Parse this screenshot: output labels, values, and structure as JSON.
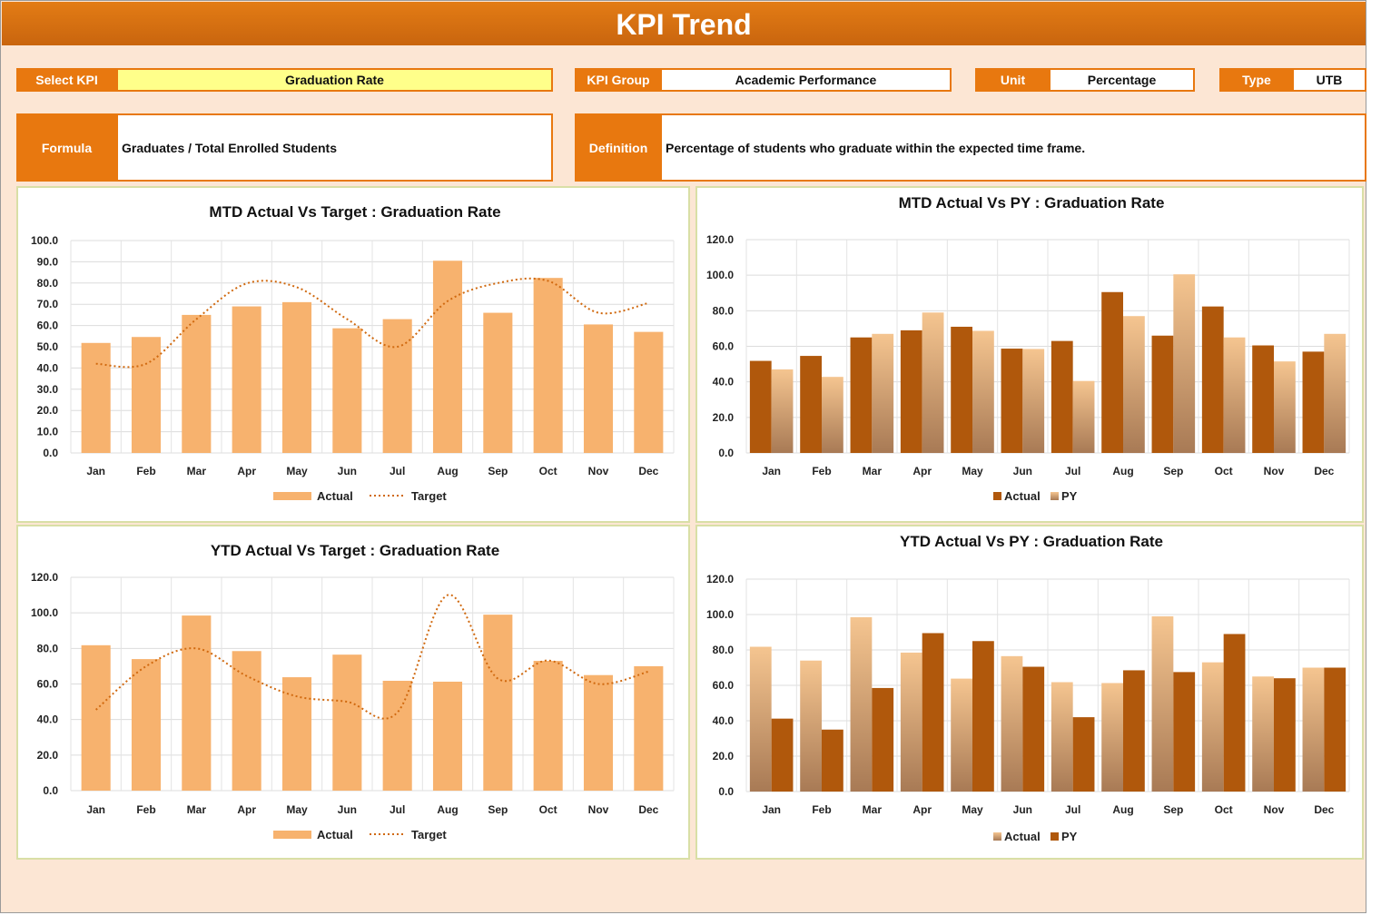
{
  "header": {
    "title": "KPI Trend"
  },
  "info": {
    "select_kpi_label": "Select KPI",
    "select_kpi_value": "Graduation Rate",
    "kpi_group_label": "KPI Group",
    "kpi_group_value": "Academic Performance",
    "unit_label": "Unit",
    "unit_value": "Percentage",
    "type_label": "Type",
    "type_value": "UTB",
    "formula_label": "Formula",
    "formula_value": "Graduates / Total Enrolled Students",
    "definition_label": "Definition",
    "definition_value": "Percentage of students who graduate within the expected time frame."
  },
  "colors": {
    "accent": "#e8780f",
    "bar_light": "#f7b26e",
    "dark": "#b0580c",
    "target_line": "#d0690f",
    "panel_border": "#d9dfa6"
  },
  "chart_data": [
    {
      "id": "mtd-target",
      "type": "bar",
      "title": "MTD Actual Vs Target : Graduation Rate",
      "categories": [
        "Jan",
        "Feb",
        "Mar",
        "Apr",
        "May",
        "Jun",
        "Jul",
        "Aug",
        "Sep",
        "Oct",
        "Nov",
        "Dec"
      ],
      "ylim": [
        0,
        100
      ],
      "ytick_step": 10,
      "series": [
        {
          "name": "Actual",
          "kind": "bar",
          "values": [
            51.8,
            54.6,
            65.0,
            69.0,
            71.0,
            58.7,
            63.0,
            90.5,
            66.0,
            82.4,
            60.5,
            57.0
          ]
        },
        {
          "name": "Target",
          "kind": "line",
          "values": [
            42.0,
            42.0,
            63.0,
            79.8,
            78.0,
            63.0,
            50.0,
            71.5,
            80.0,
            81.0,
            66.0,
            70.6
          ]
        }
      ],
      "grid": true,
      "legend": "bottom"
    },
    {
      "id": "mtd-py",
      "type": "bar",
      "title": "MTD Actual Vs PY : Graduation Rate",
      "categories": [
        "Jan",
        "Feb",
        "Mar",
        "Apr",
        "May",
        "Jun",
        "Jul",
        "Aug",
        "Sep",
        "Oct",
        "Nov",
        "Dec"
      ],
      "ylim": [
        0,
        120
      ],
      "ytick_step": 20,
      "series": [
        {
          "name": "Actual",
          "kind": "bar",
          "values": [
            51.8,
            54.6,
            65.0,
            69.0,
            71.0,
            58.7,
            63.0,
            90.5,
            66.0,
            82.4,
            60.5,
            57.0
          ]
        },
        {
          "name": "PY",
          "kind": "bar",
          "values": [
            47.0,
            42.8,
            67.0,
            79.0,
            68.7,
            58.5,
            40.5,
            77.0,
            100.5,
            65.0,
            51.5,
            67.0
          ]
        }
      ],
      "grid": true,
      "legend": "bottom"
    },
    {
      "id": "ytd-target",
      "type": "bar",
      "title": "YTD Actual Vs Target : Graduation Rate",
      "categories": [
        "Jan",
        "Feb",
        "Mar",
        "Apr",
        "May",
        "Jun",
        "Jul",
        "Aug",
        "Sep",
        "Oct",
        "Nov",
        "Dec"
      ],
      "ylim": [
        0,
        120
      ],
      "ytick_step": 20,
      "series": [
        {
          "name": "Actual",
          "kind": "bar",
          "values": [
            81.8,
            74.0,
            98.5,
            78.5,
            63.8,
            76.5,
            61.8,
            61.3,
            99.0,
            73.0,
            65.0,
            70.0
          ]
        },
        {
          "name": "Target",
          "kind": "line",
          "values": [
            45.5,
            70.0,
            80.0,
            64.5,
            53.0,
            50.0,
            44.0,
            110.0,
            63.0,
            73.2,
            60.0,
            67.0
          ]
        }
      ],
      "grid": true,
      "legend": "bottom"
    },
    {
      "id": "ytd-py",
      "type": "bar",
      "title": "YTD Actual Vs PY : Graduation Rate",
      "categories": [
        "Jan",
        "Feb",
        "Mar",
        "Apr",
        "May",
        "Jun",
        "Jul",
        "Aug",
        "Sep",
        "Oct",
        "Nov",
        "Dec"
      ],
      "ylim": [
        0,
        120
      ],
      "ytick_step": 20,
      "series": [
        {
          "name": "Actual",
          "kind": "bar",
          "values": [
            81.8,
            74.0,
            98.5,
            78.5,
            63.8,
            76.5,
            61.8,
            61.3,
            99.0,
            73.0,
            65.0,
            70.0
          ]
        },
        {
          "name": "PY",
          "kind": "bar",
          "values": [
            41.2,
            35.0,
            58.5,
            89.5,
            85.0,
            70.5,
            42.0,
            68.5,
            67.5,
            89.0,
            64.0,
            70.0
          ]
        }
      ],
      "grid": true,
      "legend": "bottom"
    }
  ]
}
